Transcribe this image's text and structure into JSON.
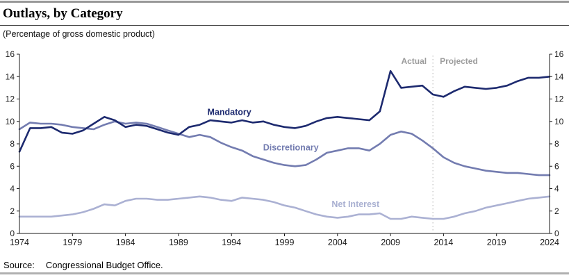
{
  "header": {
    "title": "Outlays, by Category",
    "subtitle": "(Percentage of gross domestic product)"
  },
  "footer": {
    "source_label": "Source:",
    "source_text": "Congressional Budget Office."
  },
  "colors": {
    "mandatory": "#1d2a6f",
    "discretionary": "#737cb0",
    "net_interest": "#abb1d3",
    "annotation_gray": "#9c9c9c",
    "divider_dots": "#c0c0c0",
    "axis": "#1a1a1a"
  },
  "chart_data": {
    "type": "line",
    "title": "Outlays, by Category",
    "ylabel": "Percentage of gross domestic product",
    "xlabel": "",
    "grid": false,
    "ylim": [
      0,
      16
    ],
    "xlim": [
      1974,
      2024
    ],
    "yticks": [
      0,
      2,
      4,
      6,
      8,
      10,
      12,
      14,
      16
    ],
    "ytick_sides": [
      "left",
      "right"
    ],
    "xticks": [
      1974,
      1979,
      1984,
      1989,
      1994,
      1999,
      2004,
      2009,
      2014,
      2019,
      2024
    ],
    "x": [
      1974,
      1975,
      1976,
      1977,
      1978,
      1979,
      1980,
      1981,
      1982,
      1983,
      1984,
      1985,
      1986,
      1987,
      1988,
      1989,
      1990,
      1991,
      1992,
      1993,
      1994,
      1995,
      1996,
      1997,
      1998,
      1999,
      2000,
      2001,
      2002,
      2003,
      2004,
      2005,
      2006,
      2007,
      2008,
      2009,
      2010,
      2011,
      2012,
      2013,
      2014,
      2015,
      2016,
      2017,
      2018,
      2019,
      2020,
      2021,
      2022,
      2023,
      2024
    ],
    "series": [
      {
        "name": "Net Interest",
        "color": "#abb1d3",
        "values": [
          1.5,
          1.5,
          1.5,
          1.5,
          1.6,
          1.7,
          1.9,
          2.2,
          2.6,
          2.5,
          2.9,
          3.1,
          3.1,
          3.0,
          3.0,
          3.1,
          3.2,
          3.3,
          3.2,
          3.0,
          2.9,
          3.2,
          3.1,
          3.0,
          2.8,
          2.5,
          2.3,
          2.0,
          1.7,
          1.5,
          1.4,
          1.5,
          1.7,
          1.7,
          1.8,
          1.3,
          1.3,
          1.5,
          1.4,
          1.3,
          1.3,
          1.5,
          1.8,
          2.0,
          2.3,
          2.5,
          2.7,
          2.9,
          3.1,
          3.2,
          3.3
        ]
      },
      {
        "name": "Discretionary",
        "color": "#737cb0",
        "values": [
          9.3,
          9.9,
          9.8,
          9.8,
          9.7,
          9.5,
          9.4,
          9.3,
          9.7,
          10.0,
          9.8,
          9.9,
          9.8,
          9.5,
          9.2,
          8.9,
          8.6,
          8.8,
          8.6,
          8.1,
          7.7,
          7.4,
          6.9,
          6.6,
          6.3,
          6.1,
          6.0,
          6.1,
          6.6,
          7.2,
          7.4,
          7.6,
          7.6,
          7.4,
          8.0,
          8.8,
          9.1,
          8.9,
          8.3,
          7.6,
          6.8,
          6.3,
          6.0,
          5.8,
          5.6,
          5.5,
          5.4,
          5.4,
          5.3,
          5.2,
          5.2
        ]
      },
      {
        "name": "Mandatory",
        "color": "#1d2a6f",
        "values": [
          7.3,
          9.4,
          9.4,
          9.5,
          9.0,
          8.9,
          9.2,
          9.8,
          10.4,
          10.1,
          9.5,
          9.7,
          9.6,
          9.3,
          9.0,
          8.8,
          9.5,
          9.7,
          10.1,
          10.0,
          9.9,
          10.1,
          9.9,
          10.0,
          9.7,
          9.5,
          9.4,
          9.6,
          10.0,
          10.3,
          10.4,
          10.3,
          10.2,
          10.1,
          10.9,
          14.5,
          13.0,
          13.1,
          13.2,
          12.4,
          12.2,
          12.7,
          13.1,
          13.0,
          12.9,
          13.0,
          13.2,
          13.6,
          13.9,
          13.9,
          14.0
        ]
      }
    ],
    "series_labels": [
      {
        "text": "Mandatory",
        "year": 1993.8,
        "value": 10.85,
        "color": "#1d2a6f"
      },
      {
        "text": "Discretionary",
        "year": 1999.6,
        "value": 7.7,
        "color": "#737cb0"
      },
      {
        "text": "Net Interest",
        "year": 2005.7,
        "value": 2.65,
        "color": "#a9b0d1"
      }
    ],
    "divider": {
      "year": 2013,
      "left_label": "Actual",
      "right_label": "Projected"
    },
    "legend_position": "inline-labels"
  }
}
